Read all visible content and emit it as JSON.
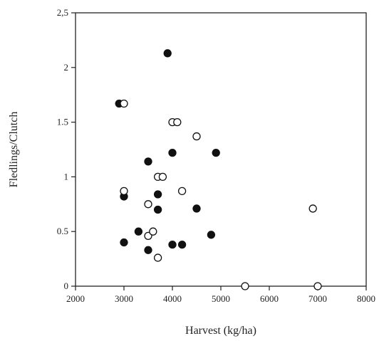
{
  "chart_data": {
    "type": "scatter",
    "title": "",
    "xlabel": "Harvest (kg/ha)",
    "ylabel": "Fledlings/Clutch",
    "xlim": [
      2000,
      8000
    ],
    "ylim": [
      0,
      2.5
    ],
    "xticks": [
      2000,
      3000,
      4000,
      5000,
      6000,
      7000,
      8000
    ],
    "yticks": [
      0,
      0.5,
      1,
      1.5,
      2,
      2.5
    ],
    "xtick_labels": [
      "2000",
      "3000",
      "4000",
      "5000",
      "6000",
      "7000",
      "8000"
    ],
    "ytick_labels": [
      "0",
      "0.5",
      "1",
      "1.5",
      "2",
      "2,5"
    ],
    "grid": false,
    "series": [
      {
        "marker": "filled-circle",
        "color": "#111111",
        "points": [
          {
            "x": 2900,
            "y": 1.67
          },
          {
            "x": 3000,
            "y": 0.82
          },
          {
            "x": 3000,
            "y": 0.4
          },
          {
            "x": 3300,
            "y": 0.5
          },
          {
            "x": 3500,
            "y": 1.14
          },
          {
            "x": 3500,
            "y": 0.33
          },
          {
            "x": 3700,
            "y": 0.84
          },
          {
            "x": 3700,
            "y": 0.7
          },
          {
            "x": 3900,
            "y": 2.13
          },
          {
            "x": 4000,
            "y": 1.22
          },
          {
            "x": 4000,
            "y": 0.38
          },
          {
            "x": 4200,
            "y": 0.38
          },
          {
            "x": 4500,
            "y": 0.71
          },
          {
            "x": 4800,
            "y": 0.47
          },
          {
            "x": 4900,
            "y": 1.22
          }
        ]
      },
      {
        "marker": "open-circle",
        "color": "#111111",
        "points": [
          {
            "x": 3000,
            "y": 1.67
          },
          {
            "x": 3000,
            "y": 0.87
          },
          {
            "x": 3500,
            "y": 0.75
          },
          {
            "x": 3500,
            "y": 0.46
          },
          {
            "x": 3600,
            "y": 0.5
          },
          {
            "x": 3700,
            "y": 1.0
          },
          {
            "x": 3700,
            "y": 0.26
          },
          {
            "x": 3800,
            "y": 1.0
          },
          {
            "x": 4000,
            "y": 1.5
          },
          {
            "x": 4100,
            "y": 1.5
          },
          {
            "x": 4200,
            "y": 0.87
          },
          {
            "x": 4500,
            "y": 1.37
          },
          {
            "x": 5500,
            "y": 0.0
          },
          {
            "x": 6900,
            "y": 0.71
          },
          {
            "x": 7000,
            "y": 0.0
          }
        ]
      }
    ]
  }
}
